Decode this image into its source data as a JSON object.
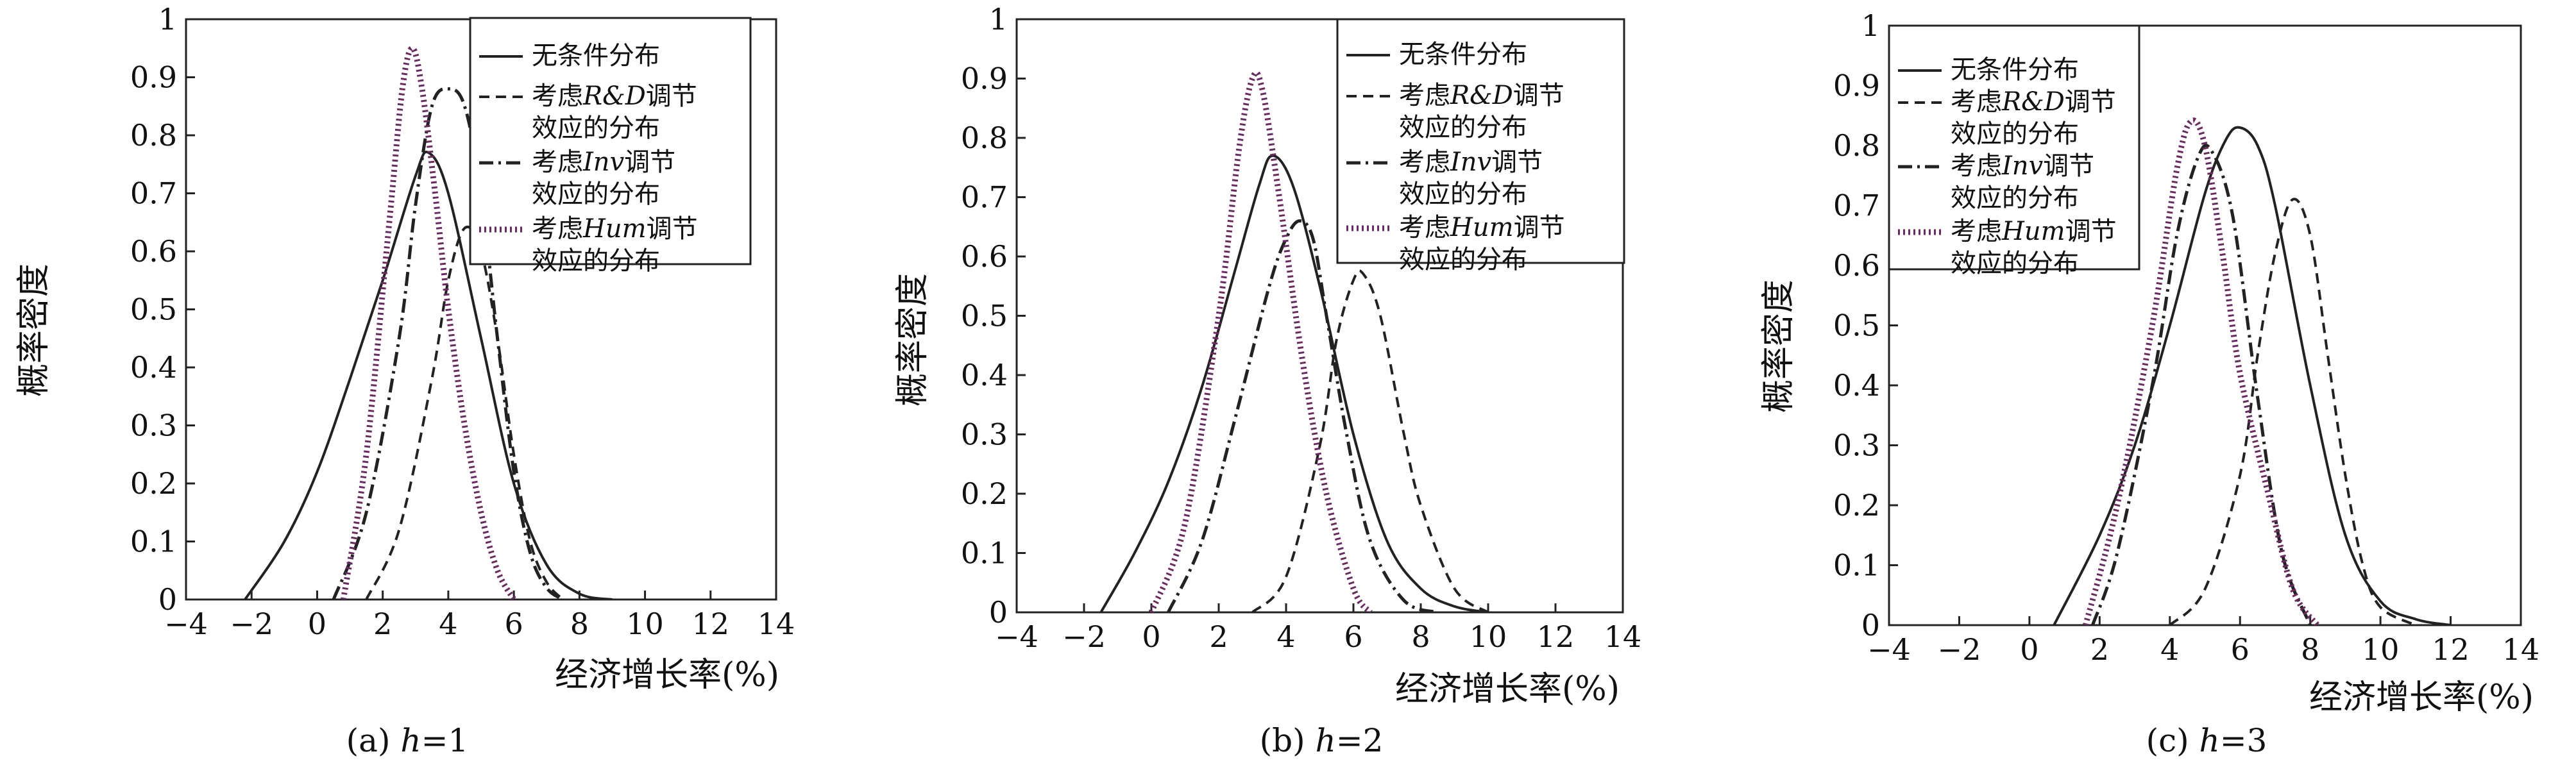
{
  "figure": {
    "panels": [
      {
        "caption_prefix": "(a) ",
        "caption_var": "h",
        "caption_suffix": "=1"
      },
      {
        "caption_prefix": "(b) ",
        "caption_var": "h",
        "caption_suffix": "=2"
      },
      {
        "caption_prefix": "(c) ",
        "caption_var": "h",
        "caption_suffix": "=3"
      }
    ]
  },
  "chart_data": [
    {
      "type": "line",
      "title": "",
      "caption": "(a) h=1",
      "xlabel": "经济增长率(%)",
      "ylabel": "概率密度",
      "xlim": [
        -4,
        14
      ],
      "ylim": [
        0,
        1
      ],
      "xticks": [
        -4,
        -2,
        0,
        2,
        4,
        6,
        8,
        10,
        12,
        14
      ],
      "yticks": [
        0,
        0.1,
        0.2,
        0.3,
        0.4,
        0.5,
        0.6,
        0.7,
        0.8,
        0.9,
        1
      ],
      "tick_labels_y": [
        "0",
        "0.1",
        "0.2",
        "0.3",
        "0.4",
        "0.5",
        "0.6",
        "0.7",
        "0.8",
        "0.9",
        "1"
      ],
      "tick_labels_x": [
        "−4",
        "−2",
        "0",
        "2",
        "4",
        "6",
        "8",
        "10",
        "12",
        "14"
      ],
      "legend_position": "top-right",
      "grid": false,
      "series": [
        {
          "name": "无条件分布",
          "style": "solid",
          "color": "#222222",
          "x": [
            -2.2,
            -1,
            0,
            1,
            2,
            3,
            3.4,
            4,
            5,
            6,
            7,
            8,
            9
          ],
          "y": [
            0,
            0.1,
            0.22,
            0.38,
            0.55,
            0.73,
            0.77,
            0.7,
            0.45,
            0.2,
            0.06,
            0.01,
            0
          ]
        },
        {
          "name": "考虑R&D调节效应的分布",
          "name_parts": [
            "考虑",
            "R&D",
            "调节",
            "效应的分布"
          ],
          "style": "dashed",
          "color": "#222222",
          "x": [
            1.5,
            2.5,
            3.5,
            4,
            4.5,
            5,
            5.5,
            6,
            6.5,
            7,
            7.5
          ],
          "y": [
            0,
            0.12,
            0.38,
            0.55,
            0.64,
            0.6,
            0.45,
            0.25,
            0.1,
            0.03,
            0
          ]
        },
        {
          "name": "考虑Inv调节效应的分布",
          "name_parts": [
            "考虑",
            "Inv",
            "调节",
            "效应的分布"
          ],
          "style": "dashdot",
          "color": "#222222",
          "x": [
            0.5,
            1.5,
            2.5,
            3,
            3.5,
            4,
            4.5,
            5,
            5.5,
            6,
            6.5,
            7,
            7.5
          ],
          "y": [
            0,
            0.15,
            0.45,
            0.68,
            0.85,
            0.88,
            0.85,
            0.7,
            0.45,
            0.22,
            0.08,
            0.02,
            0
          ]
        },
        {
          "name": "考虑Hum调节效应的分布",
          "name_parts": [
            "考虑",
            "Hum",
            "调节",
            "效应的分布"
          ],
          "style": "dotted",
          "color": "#6a2a62",
          "x": [
            0.8,
            1.5,
            2.2,
            2.6,
            2.9,
            3.2,
            3.6,
            4,
            4.5,
            5,
            5.5,
            6
          ],
          "y": [
            0,
            0.25,
            0.65,
            0.88,
            0.95,
            0.88,
            0.7,
            0.5,
            0.3,
            0.15,
            0.05,
            0
          ]
        }
      ]
    },
    {
      "type": "line",
      "title": "",
      "caption": "(b) h=2",
      "xlabel": "经济增长率(%)",
      "ylabel": "概率密度",
      "xlim": [
        -4,
        14
      ],
      "ylim": [
        0,
        1
      ],
      "xticks": [
        -4,
        -2,
        0,
        2,
        4,
        6,
        8,
        10,
        12,
        14
      ],
      "yticks": [
        0,
        0.1,
        0.2,
        0.3,
        0.4,
        0.5,
        0.6,
        0.7,
        0.8,
        0.9,
        1
      ],
      "tick_labels_y": [
        "0",
        "0.1",
        "0.2",
        "0.3",
        "0.4",
        "0.5",
        "0.6",
        "0.7",
        "0.8",
        "0.9",
        "1"
      ],
      "tick_labels_x": [
        "−4",
        "−2",
        "0",
        "2",
        "4",
        "6",
        "8",
        "10",
        "12",
        "14"
      ],
      "legend_position": "top-right",
      "grid": false,
      "series": [
        {
          "name": "无条件分布",
          "style": "solid",
          "color": "#222222",
          "x": [
            -1.5,
            -0.5,
            0.5,
            1.5,
            2.5,
            3.2,
            3.6,
            4.2,
            5,
            6,
            7,
            8,
            9,
            10
          ],
          "y": [
            0,
            0.1,
            0.22,
            0.38,
            0.58,
            0.72,
            0.77,
            0.72,
            0.55,
            0.3,
            0.12,
            0.04,
            0.01,
            0
          ]
        },
        {
          "name": "考虑R&D调节效应的分布",
          "name_parts": [
            "考虑",
            "R&D",
            "调节",
            "效应的分布"
          ],
          "style": "dashed",
          "color": "#222222",
          "x": [
            3,
            4,
            5,
            5.5,
            6,
            6.3,
            6.8,
            7.5,
            8,
            9,
            10
          ],
          "y": [
            0,
            0.06,
            0.28,
            0.46,
            0.56,
            0.57,
            0.5,
            0.3,
            0.18,
            0.04,
            0
          ]
        },
        {
          "name": "考虑Inv调节效应的分布",
          "name_parts": [
            "考虑",
            "Inv",
            "调节",
            "效应的分布"
          ],
          "style": "dashdot",
          "color": "#222222",
          "x": [
            0.5,
            1.5,
            2.5,
            3.5,
            4,
            4.4,
            4.8,
            5.2,
            5.8,
            6.5,
            7.5,
            8.5
          ],
          "y": [
            0,
            0.12,
            0.33,
            0.55,
            0.63,
            0.66,
            0.63,
            0.5,
            0.3,
            0.12,
            0.02,
            0
          ]
        },
        {
          "name": "考虑Hum调节效应的分布",
          "name_parts": [
            "考虑",
            "Hum",
            "调节",
            "效应的分布"
          ],
          "style": "dotted",
          "color": "#6a2a62",
          "x": [
            0,
            1,
            2,
            2.6,
            3,
            3.3,
            3.8,
            4.5,
            5.2,
            6,
            6.5
          ],
          "y": [
            0,
            0.15,
            0.5,
            0.78,
            0.9,
            0.88,
            0.7,
            0.42,
            0.2,
            0.04,
            0
          ]
        }
      ]
    },
    {
      "type": "line",
      "title": "",
      "caption": "(c) h=3",
      "xlabel": "经济增长率(%)",
      "ylabel": "概率密度",
      "xlim": [
        -4,
        14
      ],
      "ylim": [
        0,
        1
      ],
      "xticks": [
        -4,
        -2,
        0,
        2,
        4,
        6,
        8,
        10,
        12,
        14
      ],
      "yticks": [
        0,
        0.1,
        0.2,
        0.3,
        0.4,
        0.5,
        0.6,
        0.7,
        0.8,
        0.9,
        1
      ],
      "tick_labels_y": [
        "0",
        "0.1",
        "0.2",
        "0.3",
        "0.4",
        "0.5",
        "0.6",
        "0.7",
        "0.8",
        "0.9",
        "1"
      ],
      "tick_labels_x": [
        "−4",
        "−2",
        "0",
        "2",
        "4",
        "6",
        "8",
        "10",
        "12",
        "14"
      ],
      "legend_position": "top-left",
      "grid": false,
      "series": [
        {
          "name": "无条件分布",
          "style": "solid",
          "color": "#222222",
          "x": [
            0.7,
            2,
            3,
            4,
            5,
            5.6,
            6,
            6.5,
            7,
            8,
            9,
            10,
            11,
            12
          ],
          "y": [
            0,
            0.15,
            0.3,
            0.5,
            0.72,
            0.81,
            0.83,
            0.8,
            0.7,
            0.4,
            0.15,
            0.04,
            0.01,
            0
          ]
        },
        {
          "name": "考虑R&D调节效应的分布",
          "name_parts": [
            "考虑",
            "R&D",
            "调节",
            "效应的分布"
          ],
          "style": "dashed",
          "color": "#222222",
          "x": [
            4,
            5,
            6,
            6.5,
            7,
            7.5,
            8,
            8.5,
            9,
            9.5,
            10,
            11
          ],
          "y": [
            0,
            0.06,
            0.25,
            0.45,
            0.62,
            0.71,
            0.65,
            0.45,
            0.25,
            0.1,
            0.03,
            0
          ]
        },
        {
          "name": "考虑Inv调节效应的分布",
          "name_parts": [
            "考虑",
            "Inv",
            "调节",
            "效应的分布"
          ],
          "style": "dashdot",
          "color": "#222222",
          "x": [
            1.8,
            2.5,
            3.5,
            4.2,
            4.8,
            5.2,
            5.8,
            6.5,
            7.2,
            8
          ],
          "y": [
            0,
            0.12,
            0.4,
            0.65,
            0.78,
            0.79,
            0.68,
            0.38,
            0.12,
            0
          ]
        },
        {
          "name": "考虑Hum调节效应的分布",
          "name_parts": [
            "考虑",
            "Hum",
            "调节",
            "效应的分布"
          ],
          "style": "dotted",
          "color": "#6a2a62",
          "x": [
            1.6,
            2.5,
            3.5,
            4.2,
            4.6,
            5,
            5.5,
            6,
            6.8,
            7.5,
            8.2
          ],
          "y": [
            0,
            0.2,
            0.5,
            0.76,
            0.84,
            0.8,
            0.62,
            0.42,
            0.22,
            0.06,
            0
          ]
        }
      ]
    }
  ]
}
